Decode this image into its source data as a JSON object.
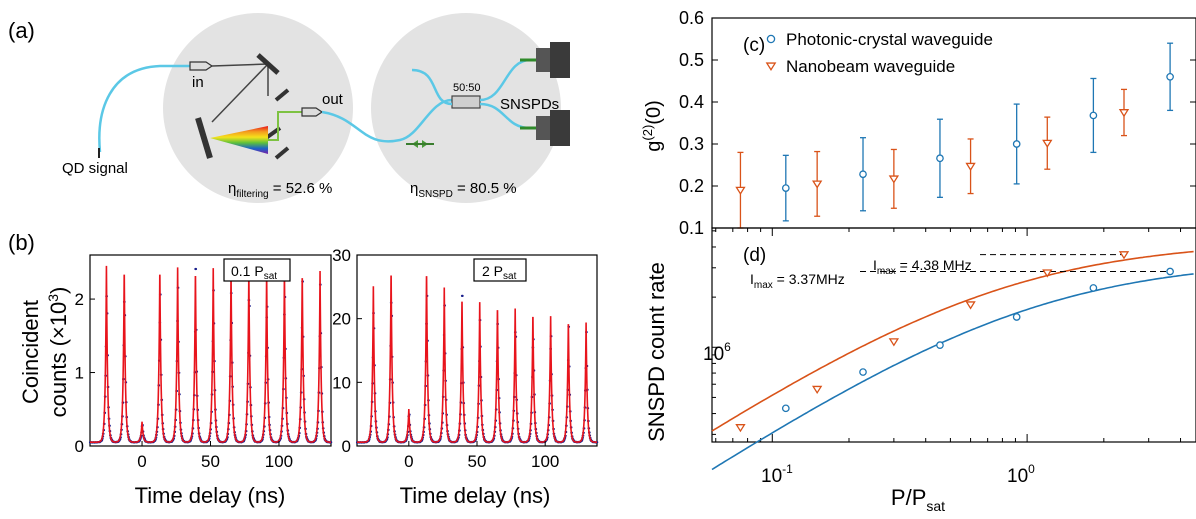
{
  "panel_labels": {
    "a": "(a)",
    "b": "(b)",
    "c": "(c)",
    "d": "(d)"
  },
  "setup": {
    "qd_signal": "QD signal",
    "in_label": "in",
    "out_label": "out",
    "splitter_label": "50:50",
    "detector_label": "SNSPDs",
    "eta_filter_symbol": "η",
    "eta_filter_sub": "filtering",
    "eta_filter_value": " = 52.6 %",
    "eta_snspd_symbol": "η",
    "eta_snspd_sub": "SNSPD",
    "eta_snspd_value": " = 80.5 %",
    "colors": {
      "circle": "#e3e3e3",
      "fiber": "#5bc8e6",
      "beam": "#7dc242",
      "dark": "#3a3a3a"
    }
  },
  "panel_b": {
    "ylabel_line1": "Coincident",
    "ylabel_line2_main": "counts (×10",
    "ylabel_line2_sup": "3",
    "ylabel_line2_end": ")",
    "xlabel": "Time delay (ns)",
    "left_box_main": "0.1 P",
    "left_box_sub": "sat",
    "right_box_main": "2 P",
    "right_box_sub": "sat"
  },
  "panel_c": {
    "ylabel_main": "g",
    "ylabel_sup": "(2)",
    "ylabel_end": "(0)"
  },
  "panel_d": {
    "ylabel": "SNSPD count rate",
    "xlabel_main": "P/P",
    "xlabel_sub": "sat",
    "imax_pc_main": "I",
    "imax_pc_sub": "max",
    "imax_pc_value": " = 3.37MHz",
    "imax_nb_main": "I",
    "imax_nb_sub": "max",
    "imax_nb_value": " = 4.38 MHz",
    "ytick_base": "10",
    "ytick_exp": "6",
    "xtick_base": "10",
    "xtick_exps": [
      "-1",
      "0"
    ]
  },
  "chart_data": [
    {
      "id": "b-left",
      "type": "line",
      "title": "0.1 Psat",
      "xlabel": "Time delay (ns)",
      "ylabel": "Coincident counts (×10³)",
      "xlim": [
        -38,
        138
      ],
      "ylim": [
        0,
        2.6
      ],
      "xticks": [
        0,
        50,
        100
      ],
      "yticks": [
        0,
        1,
        2
      ],
      "peak_centers_ns": [
        -26,
        -13,
        0,
        13,
        26,
        39,
        52,
        65,
        78,
        91,
        104,
        117,
        130
      ],
      "peak_heights": [
        2.4,
        2.38,
        0.28,
        2.38,
        2.38,
        2.36,
        2.37,
        2.36,
        2.35,
        2.34,
        2.35,
        2.33,
        2.33
      ],
      "peak_width_ns": 0.85,
      "series_colors": {
        "fit": "#e8141c",
        "data": "#1a1f8c"
      }
    },
    {
      "id": "b-right",
      "type": "line",
      "title": "2 Psat",
      "xlabel": "Time delay (ns)",
      "ylabel": "Coincident counts (×10³)",
      "xlim": [
        -38,
        138
      ],
      "ylim": [
        0,
        30
      ],
      "xticks": [
        0,
        50,
        100
      ],
      "yticks": [
        0,
        10,
        20,
        30
      ],
      "peak_centers_ns": [
        -26,
        -13,
        0,
        13,
        26,
        39,
        52,
        65,
        78,
        91,
        104,
        117,
        130
      ],
      "peak_heights": [
        24.5,
        27.3,
        5.2,
        27.2,
        24.3,
        23.0,
        22.0,
        21.6,
        21.0,
        20.5,
        19.8,
        19.3,
        18.8
      ],
      "peak_width_ns": 0.85,
      "series_colors": {
        "fit": "#e8141c",
        "data": "#1a1f8c"
      }
    },
    {
      "id": "c",
      "type": "scatter",
      "title": "",
      "xlabel": "P/Psat",
      "ylabel": "g(2)(0)",
      "x_scale": "log",
      "xlim": [
        0.058,
        4.6
      ],
      "ylim": [
        0.1,
        0.6
      ],
      "yticks": [
        0.1,
        0.2,
        0.3,
        0.4,
        0.5,
        0.6
      ],
      "legend_position": "top-left",
      "series": [
        {
          "name": "Photonic-crystal waveguide",
          "color": "#1f77b4",
          "marker": "circle",
          "x": [
            0.113,
            0.227,
            0.455,
            0.91,
            1.82,
            3.64
          ],
          "y": [
            0.195,
            0.228,
            0.266,
            0.3,
            0.368,
            0.46
          ],
          "yerr": [
            0.078,
            0.087,
            0.093,
            0.095,
            0.088,
            0.08
          ]
        },
        {
          "name": "Nanobeam waveguide",
          "color": "#d95319",
          "marker": "triangle-down",
          "x": [
            0.075,
            0.15,
            0.3,
            0.6,
            1.2,
            2.4
          ],
          "y": [
            0.19,
            0.205,
            0.217,
            0.247,
            0.302,
            0.375
          ],
          "yerr": [
            0.09,
            0.077,
            0.07,
            0.065,
            0.062,
            0.055
          ]
        }
      ]
    },
    {
      "id": "d",
      "type": "scatter",
      "title": "",
      "xlabel": "P/Psat",
      "ylabel": "SNSPD count rate",
      "x_scale": "log",
      "y_scale": "log",
      "xlim": [
        0.058,
        4.6
      ],
      "ylim": [
        270000.0,
        5200000.0
      ],
      "series": [
        {
          "name": "Photonic-crystal waveguide",
          "color": "#1f77b4",
          "marker": "circle",
          "x": [
            0.113,
            0.227,
            0.455,
            0.91,
            1.82,
            3.64
          ],
          "y": [
            430000.0,
            710000.0,
            1030000.0,
            1520000.0,
            2270000.0,
            2850000.0
          ],
          "fit_Imax": 3370000.0,
          "fit_Psat_ratio": 1.0
        },
        {
          "name": "Nanobeam waveguide",
          "color": "#d95319",
          "marker": "triangle-down",
          "x": [
            0.075,
            0.15,
            0.3,
            0.6,
            1.2,
            2.4
          ],
          "y": [
            330000.0,
            560000.0,
            1080000.0,
            1800000.0,
            2800000.0,
            3600000.0
          ],
          "fit_Imax": 4380000.0,
          "fit_Psat_ratio": 0.75
        }
      ],
      "annotations": [
        "Imax = 3.37MHz",
        "Imax = 4.38 MHz"
      ]
    }
  ]
}
